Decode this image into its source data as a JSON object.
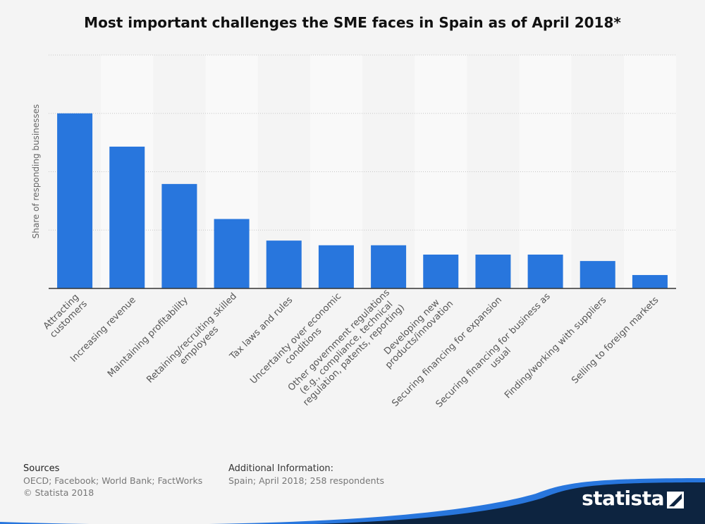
{
  "title": "Most important challenges the SME faces in Spain as of April 2018*",
  "footer": {
    "sources_heading": "Sources",
    "sources_text": "OECD; Facebook; World Bank; FactWorks",
    "copyright": "© Statista 2018",
    "additional_heading": "Additional Information:",
    "additional_text": "Spain; April 2018; 258 respondents",
    "brand": "statista"
  },
  "colors": {
    "bar": "#2876dd",
    "band": "#f9f9f9",
    "background": "#f4f4f4",
    "brand_dark": "#0d2440",
    "brand_accent": "#2876dd"
  },
  "chart_data": {
    "type": "bar",
    "ylabel": "Share of responding businesses",
    "ylim": [
      0,
      40
    ],
    "grid": true,
    "y_tick_labels_shown": false,
    "categories": [
      "Attracting customers",
      "Increasing revenue",
      "Maintaining profitability",
      "Retaining/recruiting skilled employees",
      "Tax laws and rules",
      "Uncertainty over economic conditions",
      "Other government regulations (e.g., compliance, technical regulation, patents, reporting)",
      "Developing new products/innovation",
      "Securing financing for expansion",
      "Securing financing for business as usual",
      "Finding/working with suppliers",
      "Selling to foreign markets"
    ],
    "category_lines": [
      [
        "Attracting",
        "customers"
      ],
      [
        "Increasing revenue"
      ],
      [
        "Maintaining profitability"
      ],
      [
        "Retaining/recruiting skilled",
        "employees"
      ],
      [
        "Tax laws and rules"
      ],
      [
        "Uncertainty over economic",
        "conditions"
      ],
      [
        "Other government regulations",
        "(e.g., compliance, technical",
        "regulation, patents, reporting)"
      ],
      [
        "Developing new",
        "products/innovation"
      ],
      [
        "Securing financing for expansion"
      ],
      [
        "Securing financing for business as",
        "usual"
      ],
      [
        "Finding/working with suppliers"
      ],
      [
        "Selling to foreign markets"
      ]
    ],
    "values": [
      30,
      24.3,
      17.9,
      11.9,
      8.2,
      7.4,
      7.4,
      5.8,
      5.8,
      5.8,
      4.7,
      2.3
    ]
  }
}
